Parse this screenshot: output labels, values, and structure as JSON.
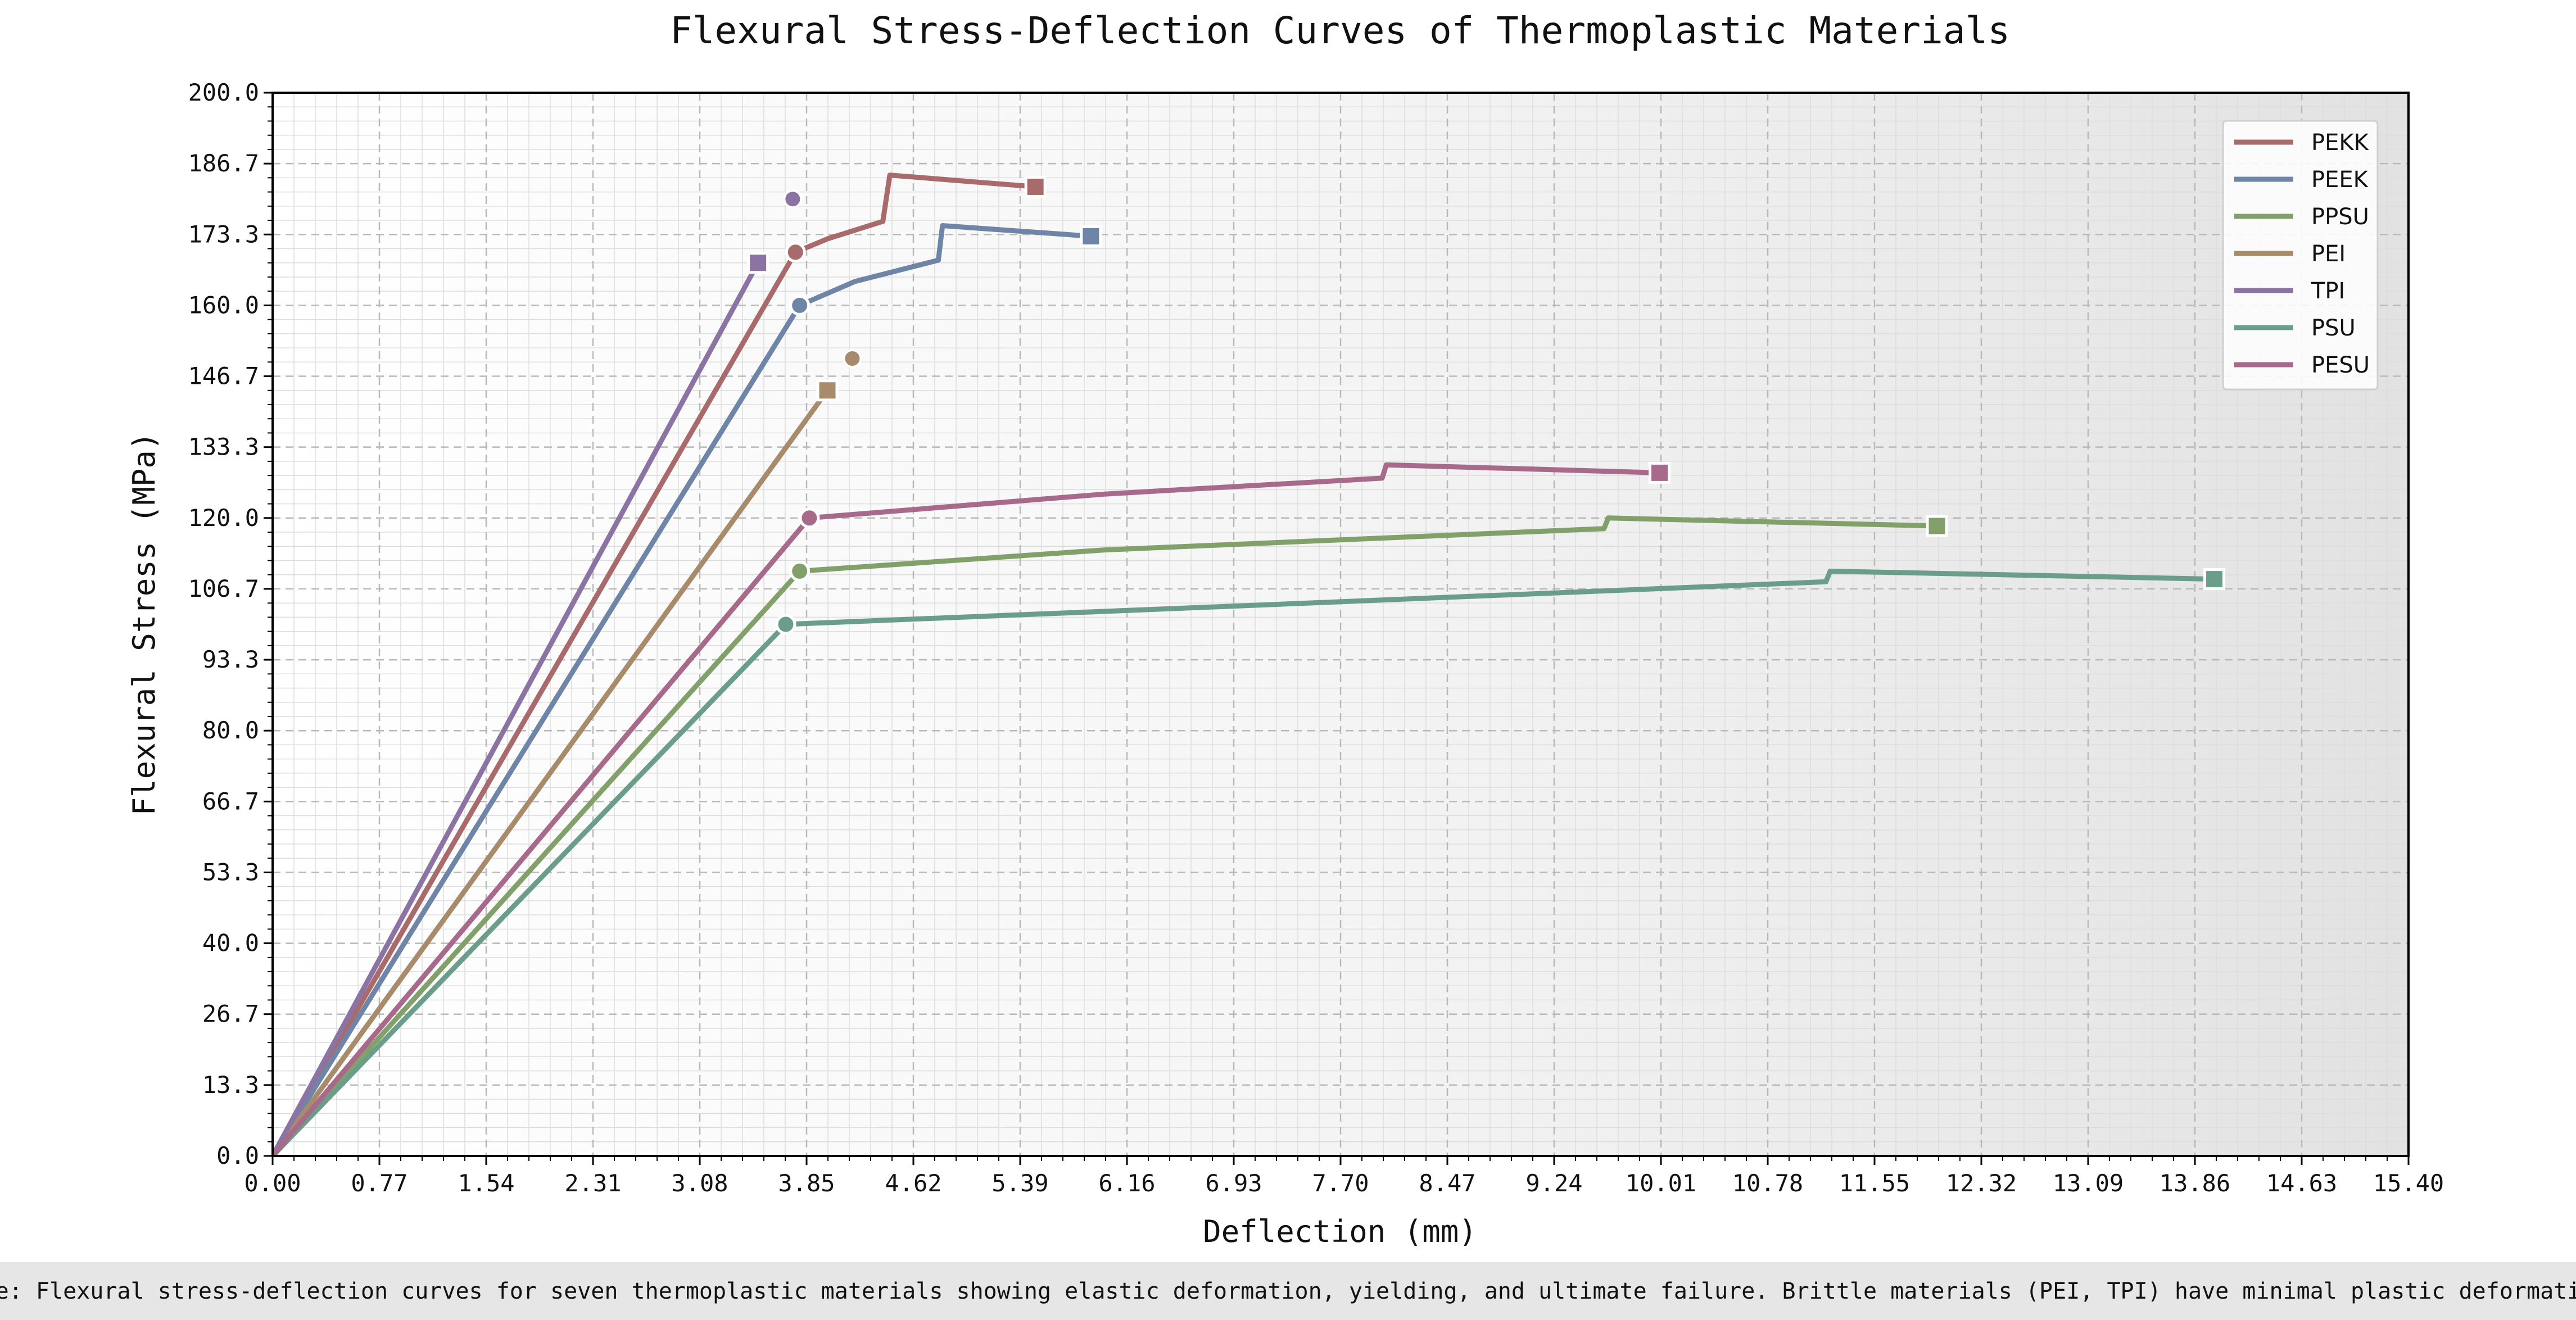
{
  "chart_data": {
    "type": "line",
    "title": "Flexural Stress-Deflection Curves of Thermoplastic Materials",
    "xlabel": "Deflection (mm)",
    "ylabel": "Flexural Stress (MPa)",
    "xlim": [
      0,
      15.4
    ],
    "ylim": [
      0,
      200
    ],
    "x_ticks": [
      "0.00",
      "0.77",
      "1.54",
      "2.31",
      "3.08",
      "3.85",
      "4.62",
      "5.39",
      "6.16",
      "6.93",
      "7.70",
      "8.47",
      "9.24",
      "10.01",
      "10.78",
      "11.55",
      "12.32",
      "13.09",
      "13.86",
      "14.63",
      "15.40"
    ],
    "y_ticks": [
      "0.0",
      "13.3",
      "26.7",
      "40.0",
      "53.3",
      "66.7",
      "80.0",
      "93.3",
      "106.7",
      "120.0",
      "133.3",
      "146.7",
      "160.0",
      "173.3",
      "186.7",
      "200.0"
    ],
    "grid": true,
    "legend_position": "top-right",
    "series": [
      {
        "name": "PEKK",
        "color": "#a86a6a",
        "points": [
          [
            0,
            0
          ],
          [
            3.77,
            170
          ],
          [
            4.0,
            172.5
          ],
          [
            4.4,
            175.8
          ],
          [
            4.45,
            184.5
          ],
          [
            5.5,
            182.3
          ]
        ],
        "yield": [
          3.77,
          170
        ],
        "failure": [
          5.5,
          182.3
        ],
        "extra_marker": [
          3.75,
          180
        ]
      },
      {
        "name": "PEEK",
        "color": "#6f85a8",
        "points": [
          [
            0,
            0
          ],
          [
            3.8,
            160
          ],
          [
            4.2,
            164.5
          ],
          [
            4.8,
            168.5
          ],
          [
            4.83,
            175
          ],
          [
            5.9,
            173
          ]
        ],
        "yield": [
          3.8,
          160
        ],
        "failure": [
          5.9,
          173
        ]
      },
      {
        "name": "PPSU",
        "color": "#82a06a",
        "points": [
          [
            0,
            0
          ],
          [
            3.8,
            110
          ],
          [
            6.0,
            114
          ],
          [
            9.6,
            118
          ],
          [
            9.63,
            120
          ],
          [
            12.0,
            118.5
          ]
        ],
        "yield": [
          3.8,
          110
        ],
        "failure": [
          12.0,
          118.5
        ]
      },
      {
        "name": "PEI",
        "color": "#a88b6a",
        "points": [
          [
            0,
            0
          ],
          [
            4.0,
            144
          ]
        ],
        "failure": [
          4.0,
          144
        ],
        "extra_marker": [
          4.18,
          150
        ]
      },
      {
        "name": "TPI",
        "color": "#8b74a3",
        "points": [
          [
            0,
            0
          ],
          [
            3.5,
            168
          ]
        ],
        "failure": [
          3.5,
          168
        ],
        "extra_marker": [
          3.75,
          180
        ]
      },
      {
        "name": "PSU",
        "color": "#6a9e8b",
        "points": [
          [
            0,
            0
          ],
          [
            3.7,
            100
          ],
          [
            7.0,
            103.5
          ],
          [
            11.2,
            108
          ],
          [
            11.23,
            110
          ],
          [
            14.0,
            108.5
          ]
        ],
        "yield": [
          3.7,
          100
        ],
        "failure": [
          14.0,
          108.5
        ]
      },
      {
        "name": "PESU",
        "color": "#a86a8b",
        "points": [
          [
            0,
            0
          ],
          [
            3.87,
            120
          ],
          [
            6.0,
            124.5
          ],
          [
            8.0,
            127.5
          ],
          [
            8.03,
            130
          ],
          [
            10.0,
            128.5
          ]
        ],
        "yield": [
          3.87,
          120
        ],
        "failure": [
          10.0,
          128.5
        ]
      }
    ]
  },
  "note": "Note: Flexural stress-deflection curves for seven thermoplastic materials showing elastic deformation, yielding, and ultimate failure. Brittle materials (PEI, TPI) have minimal plastic deformation."
}
